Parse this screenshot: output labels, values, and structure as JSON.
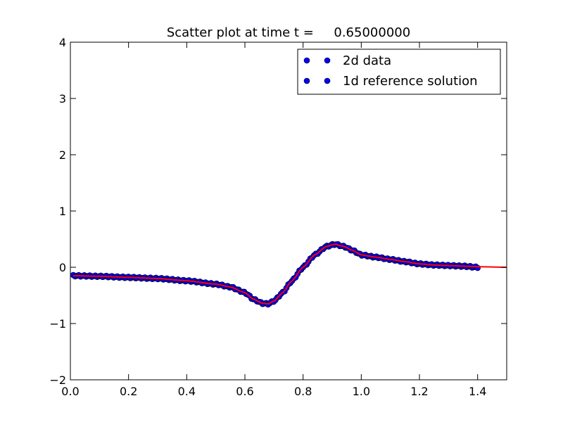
{
  "chart_data": {
    "type": "scatter",
    "title": "Scatter plot at time t =     0.65000000",
    "xlabel": "",
    "ylabel": "",
    "xlim": [
      0.0,
      1.5
    ],
    "ylim": [
      -2,
      4
    ],
    "x_ticks": [
      0.0,
      0.2,
      0.4,
      0.6,
      0.8,
      1.0,
      1.2,
      1.4
    ],
    "x_tick_labels": [
      "0.0",
      "0.2",
      "0.4",
      "0.6",
      "0.8",
      "1.0",
      "1.2",
      "1.4"
    ],
    "y_ticks": [
      -2,
      -1,
      0,
      1,
      2,
      3,
      4
    ],
    "y_tick_labels": [
      "−2",
      "−1",
      "0",
      "1",
      "2",
      "3",
      "4"
    ],
    "grid": false,
    "legend_position": "top-right",
    "series": [
      {
        "name": "2d data",
        "kind": "scatter",
        "marker": "circle",
        "color": "#0000ff",
        "edge_color": "#000000",
        "x": [
          0.01,
          0.1,
          0.2,
          0.3,
          0.4,
          0.5,
          0.55,
          0.6,
          0.63,
          0.66,
          0.68,
          0.7,
          0.73,
          0.76,
          0.8,
          0.84,
          0.88,
          0.91,
          0.94,
          0.97,
          1.0,
          1.05,
          1.1,
          1.15,
          1.2,
          1.25,
          1.3,
          1.35,
          1.4
        ],
        "y": [
          -0.15,
          -0.16,
          -0.18,
          -0.2,
          -0.24,
          -0.3,
          -0.35,
          -0.45,
          -0.57,
          -0.64,
          -0.65,
          -0.6,
          -0.45,
          -0.25,
          0.0,
          0.22,
          0.37,
          0.41,
          0.37,
          0.3,
          0.22,
          0.18,
          0.14,
          0.1,
          0.06,
          0.04,
          0.03,
          0.02,
          0.0
        ]
      },
      {
        "name": "1d reference solution",
        "kind": "line",
        "color": "#ff0000",
        "x": [
          0.01,
          0.1,
          0.2,
          0.3,
          0.4,
          0.5,
          0.55,
          0.6,
          0.63,
          0.66,
          0.68,
          0.7,
          0.73,
          0.76,
          0.8,
          0.84,
          0.88,
          0.91,
          0.94,
          0.97,
          1.0,
          1.05,
          1.1,
          1.15,
          1.2,
          1.25,
          1.3,
          1.35,
          1.4,
          1.5
        ],
        "y": [
          -0.15,
          -0.16,
          -0.18,
          -0.2,
          -0.24,
          -0.3,
          -0.35,
          -0.45,
          -0.57,
          -0.64,
          -0.65,
          -0.6,
          -0.45,
          -0.25,
          0.0,
          0.22,
          0.37,
          0.41,
          0.37,
          0.3,
          0.22,
          0.18,
          0.14,
          0.1,
          0.06,
          0.04,
          0.03,
          0.02,
          0.01,
          0.0
        ]
      }
    ]
  }
}
